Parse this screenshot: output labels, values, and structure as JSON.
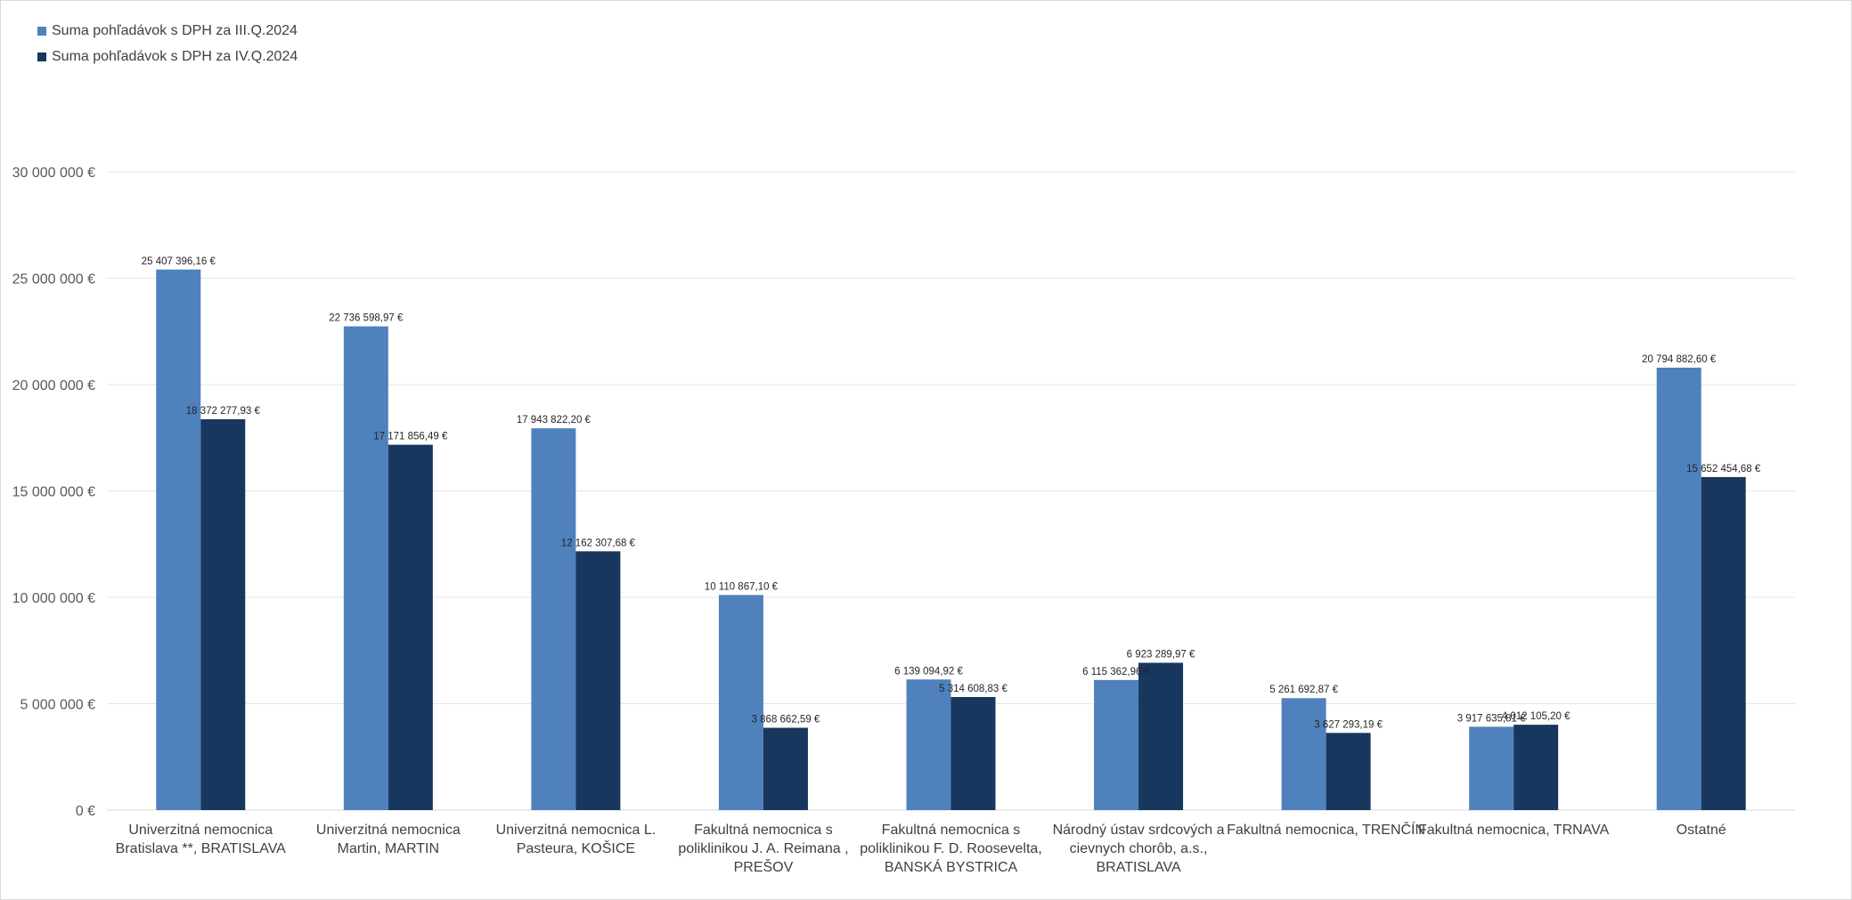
{
  "colors": {
    "series1": "#4F81BD",
    "series2": "#17375E",
    "grid": "#e6e6e6",
    "axis": "#d9d9d9"
  },
  "chart_data": {
    "type": "bar",
    "title": "",
    "xlabel": "",
    "ylabel": "",
    "ylim": [
      0,
      30000000
    ],
    "y_ticks": [
      0,
      5000000,
      10000000,
      15000000,
      20000000,
      25000000,
      30000000
    ],
    "y_tick_labels": [
      "0 €",
      "5 000 000 €",
      "10 000 000 €",
      "15 000 000 €",
      "20 000 000 €",
      "25 000 000 €",
      "30 000 000 €"
    ],
    "grid": true,
    "legend_position": "top-left",
    "categories": [
      [
        "Univerzitná nemocnica",
        "Bratislava **, BRATISLAVA"
      ],
      [
        "Univerzitná nemocnica",
        "Martin, MARTIN"
      ],
      [
        "Univerzitná nemocnica L.",
        "Pasteura, KOŠICE"
      ],
      [
        "Fakultná nemocnica s",
        "poliklinikou J. A. Reimana ,",
        "PREŠOV"
      ],
      [
        "Fakultná nemocnica s",
        "poliklinikou F. D. Roosevelta,",
        "BANSKÁ BYSTRICA"
      ],
      [
        "Národný ústav srdcových a",
        "cievnych chorôb, a.s.,",
        "BRATISLAVA"
      ],
      [
        "Fakultná nemocnica, TRENČÍN"
      ],
      [
        "Fakultná nemocnica, TRNAVA"
      ],
      [
        "Ostatné"
      ]
    ],
    "series": [
      {
        "name": "Suma pohľadávok s DPH za III.Q.2024",
        "color": "#4F81BD",
        "values": [
          25407396.16,
          22736598.97,
          17943822.2,
          10110867.1,
          6139094.92,
          6115362.96,
          5261692.87,
          3917635.81,
          20794882.6
        ],
        "labels": [
          "25 407 396,16 €",
          "22 736 598,97 €",
          "17 943 822,20 €",
          "10 110 867,10 €",
          "6 139 094,92 €",
          "6 115 362,96 €",
          "5 261 692,87 €",
          "3 917 635,81 €",
          "20 794 882,60 €"
        ]
      },
      {
        "name": "Suma pohľadávok s DPH za IV.Q.2024",
        "color": "#17375E",
        "values": [
          18372277.93,
          17171856.49,
          12162307.68,
          3868662.59,
          5314608.83,
          6923289.97,
          3627293.19,
          4012105.2,
          15652454.68
        ],
        "labels": [
          "18 372 277,93 €",
          "17 171 856,49 €",
          "12 162 307,68 €",
          "3 868 662,59 €",
          "5 314 608,83 €",
          "6 923 289,97 €",
          "3 627 293,19 €",
          "4 012 105,20 €",
          "15 652 454,68 €"
        ]
      }
    ]
  }
}
